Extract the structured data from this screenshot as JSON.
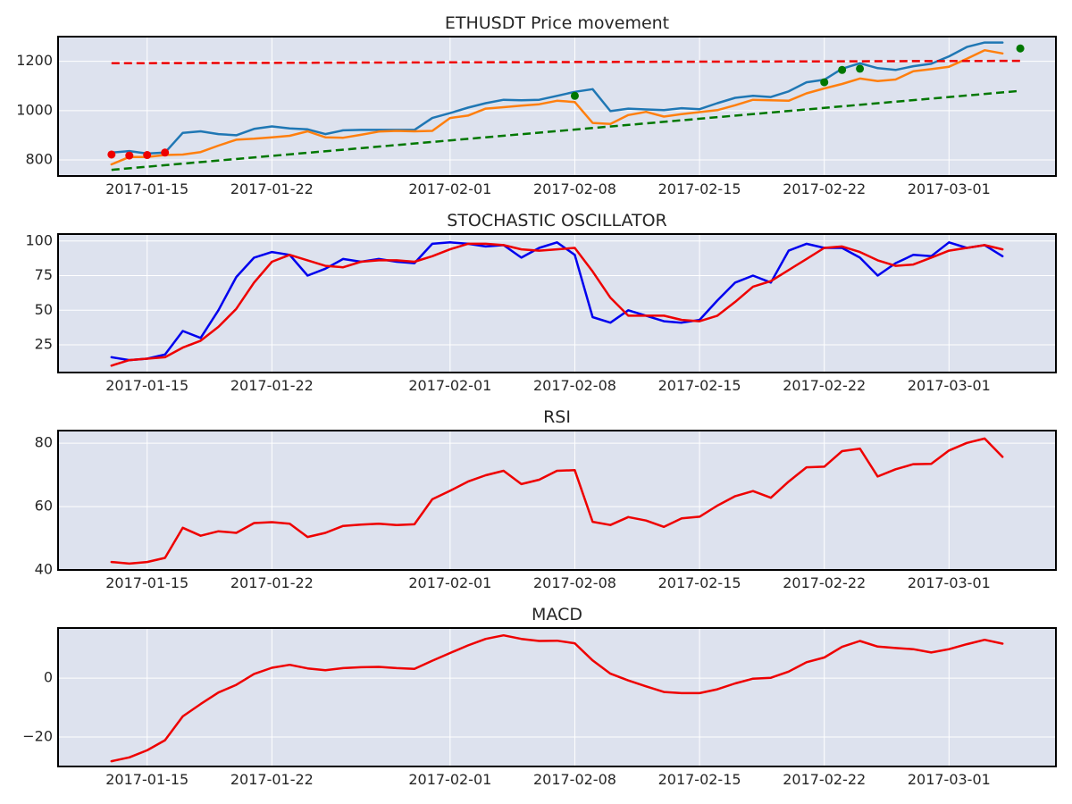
{
  "colors": {
    "background": "#ffffff",
    "panel": "#dde2ee",
    "grid": "#ffffff",
    "blue": "#1f77b4",
    "orange": "#ff7f0e",
    "stoch_k": "#0000ee",
    "red": "#ee0000",
    "green": "#007700"
  },
  "chart_data": [
    {
      "type": "line",
      "id": "price",
      "title": "ETHUSDT Price movement",
      "x_ticks": [
        "2017-01-15",
        "2017-01-22",
        "2017-02-01",
        "2017-02-08",
        "2017-02-15",
        "2017-02-22",
        "2017-03-01"
      ],
      "x_range": [
        "2017-01-10",
        "2017-03-07"
      ],
      "x_start": "2017-01-13",
      "ylim": [
        735,
        1300
      ],
      "y_ticks": [
        800,
        1000,
        1200
      ],
      "grid": true,
      "series": [
        {
          "style": "line",
          "color": "blue",
          "values": [
            830,
            836,
            826,
            830,
            910,
            916,
            905,
            900,
            926,
            936,
            928,
            924,
            905,
            920,
            922,
            922,
            922,
            922,
            970,
            990,
            1012,
            1030,
            1044,
            1042,
            1044,
            1060,
            1076,
            1087,
            998,
            1008,
            1005,
            1002,
            1010,
            1006,
            1030,
            1052,
            1060,
            1055,
            1078,
            1115,
            1125,
            1170,
            1192,
            1172,
            1165,
            1180,
            1190,
            1220,
            1258,
            1276,
            1276
          ]
        },
        {
          "style": "line",
          "color": "orange",
          "values": [
            782,
            812,
            812,
            820,
            822,
            832,
            858,
            882,
            886,
            892,
            898,
            916,
            892,
            890,
            902,
            915,
            918,
            916,
            918,
            970,
            980,
            1008,
            1014,
            1020,
            1026,
            1040,
            1035,
            950,
            946,
            982,
            995,
            976,
            986,
            994,
            1002,
            1022,
            1044,
            1042,
            1040,
            1070,
            1090,
            1108,
            1130,
            1120,
            1126,
            1160,
            1168,
            1178,
            1210,
            1245,
            1232
          ]
        },
        {
          "style": "dashed",
          "color": "red",
          "x": [
            "2017-01-13",
            "2017-03-05"
          ],
          "values": [
            1192,
            1202
          ]
        },
        {
          "style": "dashed",
          "color": "green",
          "x": [
            "2017-01-13",
            "2017-03-05"
          ],
          "values": [
            760,
            1080
          ]
        },
        {
          "style": "points",
          "color": "red",
          "x": [
            "2017-01-13",
            "2017-01-14",
            "2017-01-15",
            "2017-01-16"
          ],
          "values": [
            822,
            818,
            820,
            830
          ]
        },
        {
          "style": "points",
          "color": "green",
          "x": [
            "2017-02-08",
            "2017-02-22",
            "2017-02-23",
            "2017-02-24",
            "2017-03-05"
          ],
          "values": [
            1060,
            1115,
            1165,
            1170,
            1252
          ]
        }
      ]
    },
    {
      "type": "line",
      "id": "stoch",
      "title": "STOCHASTIC OSCILLATOR",
      "x_ticks": [
        "2017-01-15",
        "2017-01-22",
        "2017-02-01",
        "2017-02-08",
        "2017-02-15",
        "2017-02-22",
        "2017-03-01"
      ],
      "x_range": [
        "2017-01-10",
        "2017-03-07"
      ],
      "x_start": "2017-01-13",
      "ylim": [
        5,
        105
      ],
      "y_ticks": [
        25,
        50,
        75,
        100
      ],
      "grid": true,
      "series": [
        {
          "style": "line",
          "color": "stoch_k",
          "values": [
            16,
            14,
            15,
            18,
            35,
            30,
            50,
            74,
            88,
            92,
            90,
            75,
            80,
            87,
            85,
            87,
            85,
            84,
            98,
            99,
            98,
            96,
            97,
            88,
            95,
            99,
            90,
            45,
            41,
            50,
            46,
            42,
            41,
            43,
            57,
            70,
            75,
            70,
            93,
            98,
            95,
            95,
            88,
            75,
            84,
            90,
            89,
            99,
            95,
            97,
            89
          ]
        },
        {
          "style": "line",
          "color": "red",
          "values": [
            10,
            14,
            15,
            16,
            23,
            28,
            38,
            51,
            70,
            85,
            90,
            86,
            82,
            81,
            85,
            86,
            86,
            85,
            89,
            94,
            98,
            98,
            97,
            94,
            93,
            94,
            95,
            78,
            59,
            46,
            46,
            46,
            43,
            42,
            46,
            56,
            67,
            71,
            79,
            87,
            95,
            96,
            92,
            86,
            82,
            83,
            88,
            93,
            95,
            97,
            94
          ]
        }
      ]
    },
    {
      "type": "line",
      "id": "rsi",
      "title": "RSI",
      "x_ticks": [
        "2017-01-15",
        "2017-01-22",
        "2017-02-01",
        "2017-02-08",
        "2017-02-15",
        "2017-02-22",
        "2017-03-01"
      ],
      "x_range": [
        "2017-01-10",
        "2017-03-07"
      ],
      "x_start": "2017-01-13",
      "ylim": [
        40,
        84
      ],
      "y_ticks": [
        40,
        60,
        80
      ],
      "grid": true,
      "series": [
        {
          "style": "line",
          "color": "red",
          "values": [
            42.5,
            42,
            42.5,
            43.8,
            53.3,
            50.8,
            52.2,
            51.7,
            54.8,
            55.1,
            54.6,
            50.4,
            51.7,
            53.9,
            54.3,
            54.6,
            54.2,
            54.4,
            62.3,
            65,
            67.9,
            69.9,
            71.3,
            67.1,
            68.5,
            71.3,
            71.5,
            55.2,
            54.2,
            56.7,
            55.6,
            53.6,
            56.3,
            56.8,
            60.3,
            63.3,
            64.9,
            62.8,
            67.9,
            72.4,
            72.6,
            77.5,
            78.3,
            69.5,
            71.8,
            73.4,
            73.5,
            77.7,
            80.1,
            81.5,
            75.7
          ]
        }
      ]
    },
    {
      "type": "line",
      "id": "macd",
      "title": "MACD",
      "x_ticks": [
        "2017-01-15",
        "2017-01-22",
        "2017-02-01",
        "2017-02-08",
        "2017-02-15",
        "2017-02-22",
        "2017-03-01"
      ],
      "x_range": [
        "2017-01-10",
        "2017-03-07"
      ],
      "x_start": "2017-01-13",
      "ylim": [
        -30,
        17
      ],
      "y_ticks": [
        -20,
        0
      ],
      "grid": true,
      "series": [
        {
          "style": "line",
          "color": "red",
          "values": [
            -28.2,
            -26.9,
            -24.5,
            -21.1,
            -13,
            -8.8,
            -4.9,
            -2.3,
            1.4,
            3.5,
            4.5,
            3.3,
            2.7,
            3.4,
            3.7,
            3.8,
            3.4,
            3.1,
            5.9,
            8.5,
            11.1,
            13.3,
            14.5,
            13.3,
            12.6,
            12.7,
            11.8,
            6,
            1.5,
            -0.8,
            -2.8,
            -4.7,
            -5.1,
            -5.1,
            -3.8,
            -1.8,
            -0.2,
            0.1,
            2.2,
            5.4,
            7,
            10.6,
            12.6,
            10.7,
            10.2,
            9.8,
            8.7,
            9.8,
            11.5,
            13,
            11.7
          ]
        }
      ]
    }
  ]
}
